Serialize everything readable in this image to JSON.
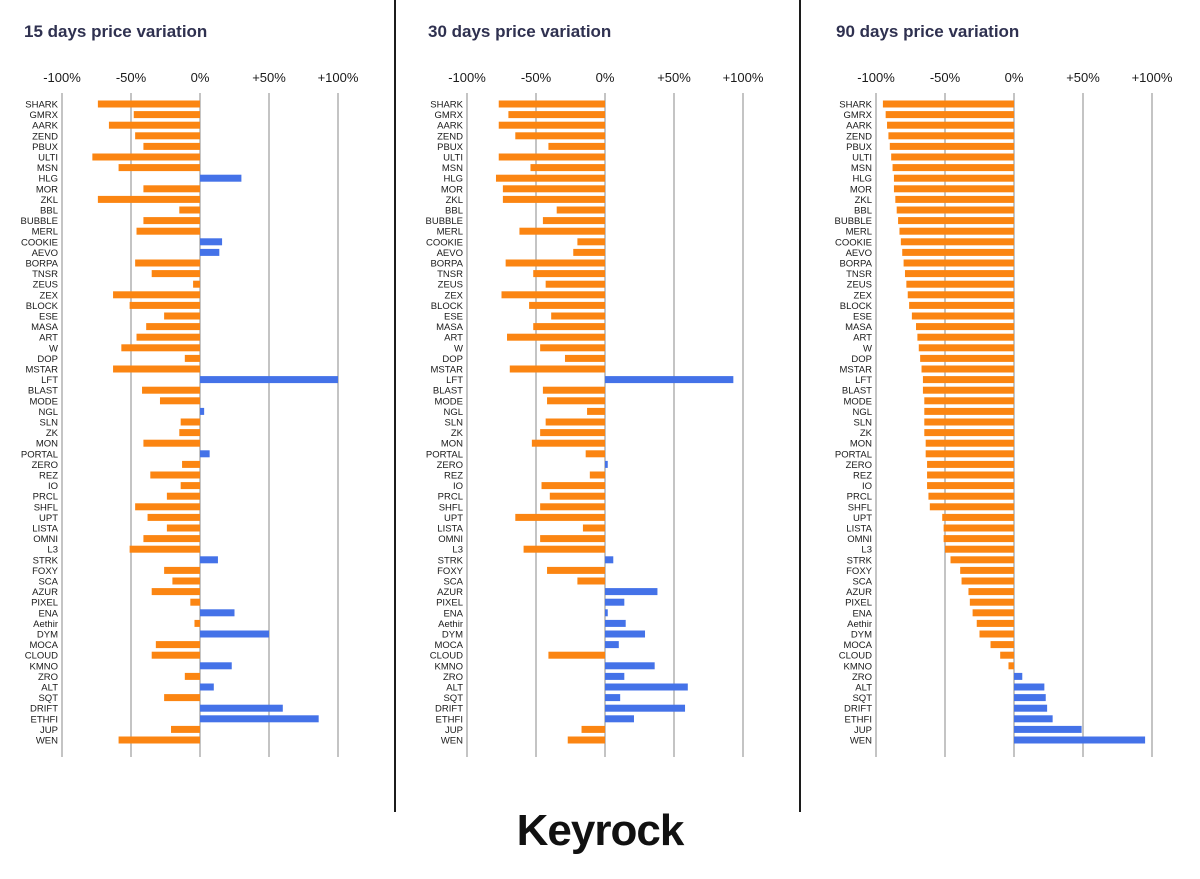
{
  "colors": {
    "negative": "#fb8512",
    "positive": "#4472e8",
    "grid": "#8a8a8a",
    "label": "#1a1a1a",
    "title": "#2f3150"
  },
  "brand": {
    "logo": "Keyrock"
  },
  "chart_data": [
    {
      "type": "bar",
      "orientation": "horizontal",
      "title": "15 days price variation",
      "xlim": [
        -100,
        100
      ],
      "xticks": [
        -100,
        -50,
        0,
        50,
        100
      ],
      "xtick_labels": [
        "-100%",
        "-50%",
        "0%",
        "+50%",
        "+100%"
      ],
      "categories": [
        "SHARK",
        "GMRX",
        "AARK",
        "ZEND",
        "PBUX",
        "ULTI",
        "MSN",
        "HLG",
        "MOR",
        "ZKL",
        "BBL",
        "BUBBLE",
        "MERL",
        "COOKIE",
        "AEVO",
        "BORPA",
        "TNSR",
        "ZEUS",
        "ZEX",
        "BLOCK",
        "ESE",
        "MASA",
        "ART",
        "W",
        "DOP",
        "MSTAR",
        "LFT",
        "BLAST",
        "MODE",
        "NGL",
        "SLN",
        "ZK",
        "MON",
        "PORTAL",
        "ZERO",
        "REZ",
        "IO",
        "PRCL",
        "SHFL",
        "UPT",
        "LISTA",
        "OMNI",
        "L3",
        "STRK",
        "FOXY",
        "SCA",
        "AZUR",
        "PIXEL",
        "ENA",
        "Aethir",
        "DYM",
        "MOCA",
        "CLOUD",
        "KMNO",
        "ZRO",
        "ALT",
        "SQT",
        "DRIFT",
        "ETHFI",
        "JUP",
        "WEN"
      ],
      "values": [
        -74,
        -48,
        -66,
        -47,
        -41,
        -78,
        -59,
        30,
        -41,
        -74,
        -15,
        -41,
        -46,
        16,
        14,
        -47,
        -35,
        -5,
        -63,
        -51,
        -26,
        -39,
        -46,
        -57,
        -11,
        -63,
        100,
        -42,
        -29,
        3,
        -14,
        -15,
        -41,
        7,
        -13,
        -36,
        -14,
        -24,
        -47,
        -38,
        -24,
        -41,
        -51,
        13,
        -26,
        -20,
        -35,
        -7,
        25,
        -4,
        50,
        -32,
        -35,
        23,
        -11,
        10,
        -26,
        60,
        86,
        -21,
        -59
      ]
    },
    {
      "type": "bar",
      "orientation": "horizontal",
      "title": "30 days price variation",
      "xlim": [
        -100,
        100
      ],
      "xticks": [
        -100,
        -50,
        0,
        50,
        100
      ],
      "xtick_labels": [
        "-100%",
        "-50%",
        "0%",
        "+50%",
        "+100%"
      ],
      "categories": [
        "SHARK",
        "GMRX",
        "AARK",
        "ZEND",
        "PBUX",
        "ULTI",
        "MSN",
        "HLG",
        "MOR",
        "ZKL",
        "BBL",
        "BUBBLE",
        "MERL",
        "COOKIE",
        "AEVO",
        "BORPA",
        "TNSR",
        "ZEUS",
        "ZEX",
        "BLOCK",
        "ESE",
        "MASA",
        "ART",
        "W",
        "DOP",
        "MSTAR",
        "LFT",
        "BLAST",
        "MODE",
        "NGL",
        "SLN",
        "ZK",
        "MON",
        "PORTAL",
        "ZERO",
        "REZ",
        "IO",
        "PRCL",
        "SHFL",
        "UPT",
        "LISTA",
        "OMNI",
        "L3",
        "STRK",
        "FOXY",
        "SCA",
        "AZUR",
        "PIXEL",
        "ENA",
        "Aethir",
        "DYM",
        "MOCA",
        "CLOUD",
        "KMNO",
        "ZRO",
        "ALT",
        "SQT",
        "DRIFT",
        "ETHFI",
        "JUP",
        "WEN"
      ],
      "values": [
        -77,
        -70,
        -77,
        -65,
        -41,
        -77,
        -54,
        -79,
        -74,
        -74,
        -35,
        -45,
        -62,
        -20,
        -23,
        -72,
        -52,
        -43,
        -75,
        -55,
        -39,
        -52,
        -71,
        -47,
        -29,
        -69,
        93,
        -45,
        -42,
        -13,
        -43,
        -47,
        -53,
        -14,
        2,
        -11,
        -46,
        -40,
        -47,
        -65,
        -16,
        -47,
        -59,
        6,
        -42,
        -20,
        38,
        14,
        2,
        15,
        29,
        10,
        -41,
        36,
        14,
        60,
        11,
        58,
        21,
        -17,
        -27
      ]
    },
    {
      "type": "bar",
      "orientation": "horizontal",
      "title": "90 days price variation",
      "xlim": [
        -100,
        100
      ],
      "xticks": [
        -100,
        -50,
        0,
        50,
        100
      ],
      "xtick_labels": [
        "-100%",
        "-50%",
        "0%",
        "+50%",
        "+100%"
      ],
      "categories": [
        "SHARK",
        "GMRX",
        "AARK",
        "ZEND",
        "PBUX",
        "ULTI",
        "MSN",
        "HLG",
        "MOR",
        "ZKL",
        "BBL",
        "BUBBLE",
        "MERL",
        "COOKIE",
        "AEVO",
        "BORPA",
        "TNSR",
        "ZEUS",
        "ZEX",
        "BLOCK",
        "ESE",
        "MASA",
        "ART",
        "W",
        "DOP",
        "MSTAR",
        "LFT",
        "BLAST",
        "MODE",
        "NGL",
        "SLN",
        "ZK",
        "MON",
        "PORTAL",
        "ZERO",
        "REZ",
        "IO",
        "PRCL",
        "SHFL",
        "UPT",
        "LISTA",
        "OMNI",
        "L3",
        "STRK",
        "FOXY",
        "SCA",
        "AZUR",
        "PIXEL",
        "ENA",
        "Aethir",
        "DYM",
        "MOCA",
        "CLOUD",
        "KMNO",
        "ZRO",
        "ALT",
        "SQT",
        "DRIFT",
        "ETHFI",
        "JUP",
        "WEN"
      ],
      "values": [
        -95,
        -93,
        -92,
        -91,
        -90,
        -89,
        -88,
        -87,
        -87,
        -86,
        -85,
        -84,
        -83,
        -82,
        -81,
        -80,
        -79,
        -78,
        -77,
        -76,
        -74,
        -71,
        -70,
        -69,
        -68,
        -67,
        -66,
        -66,
        -65,
        -65,
        -65,
        -65,
        -64,
        -64,
        -63,
        -63,
        -63,
        -62,
        -61,
        -52,
        -51,
        -51,
        -50,
        -46,
        -39,
        -38,
        -33,
        -32,
        -30,
        -27,
        -25,
        -17,
        -10,
        -4,
        6,
        22,
        23,
        24,
        28,
        49,
        95
      ]
    }
  ]
}
